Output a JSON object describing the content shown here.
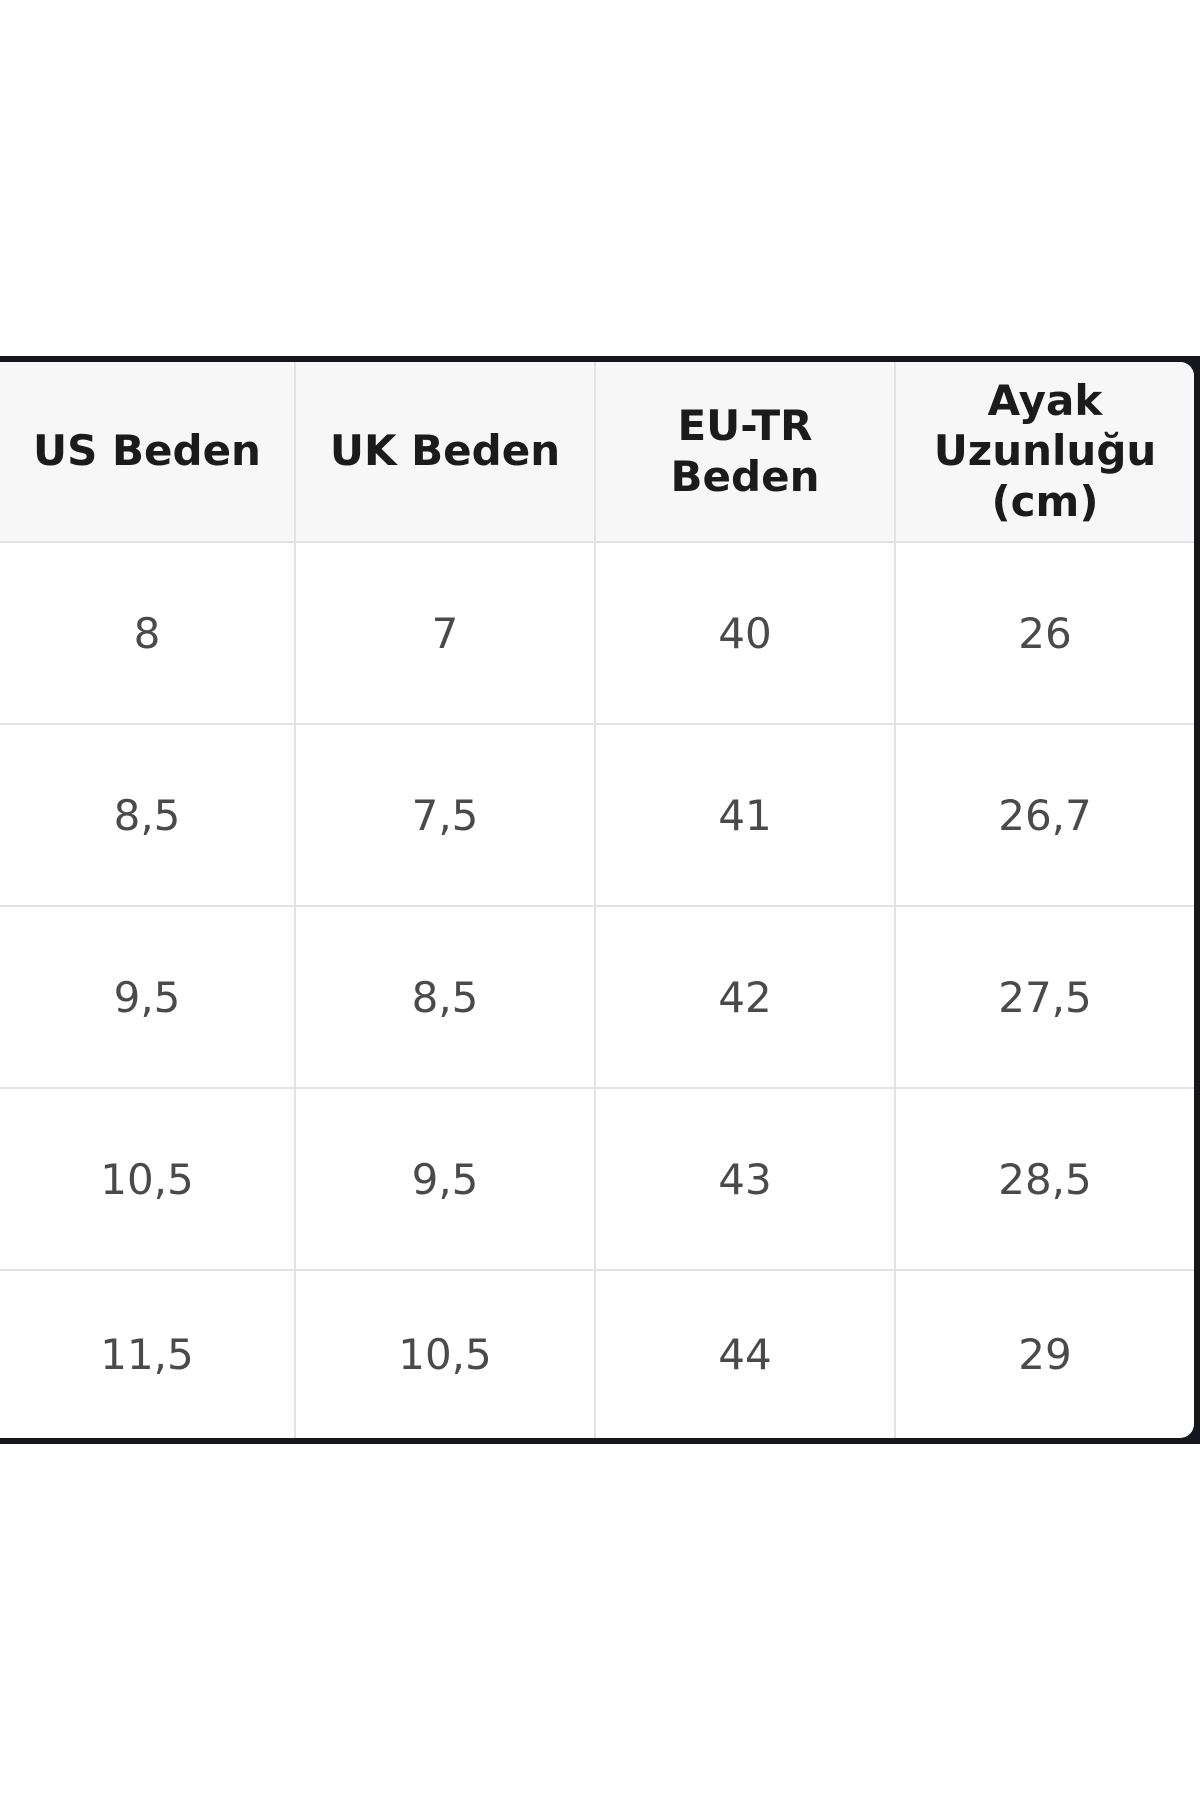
{
  "table": {
    "header": [
      "US Beden",
      "UK Beden",
      "EU-TR Beden",
      "Ayak Uzunluğu (cm)"
    ],
    "rows": [
      [
        "8",
        "7",
        "40",
        "26"
      ],
      [
        "8,5",
        "7,5",
        "41",
        "26,7"
      ],
      [
        "9,5",
        "8,5",
        "42",
        "27,5"
      ],
      [
        "10,5",
        "9,5",
        "43",
        "28,5"
      ],
      [
        "11,5",
        "10,5",
        "44",
        "29"
      ]
    ]
  }
}
